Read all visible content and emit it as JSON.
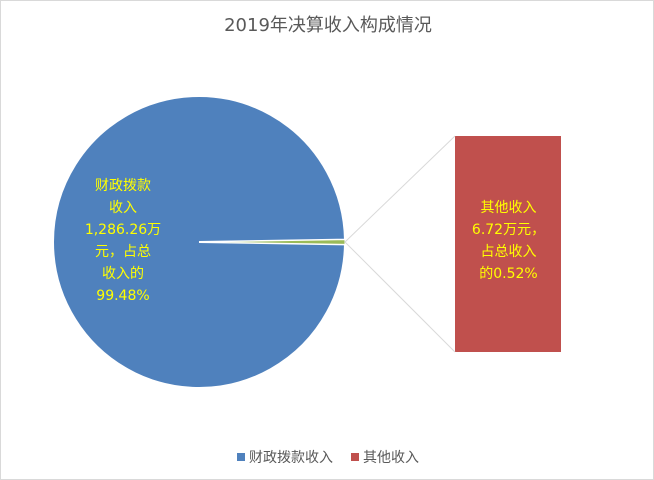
{
  "chart_data": {
    "type": "pie",
    "title": "2019年决算收入构成情况",
    "slices": [
      {
        "name": "财政拨款收入",
        "value": 1286.26,
        "percent": 99.48,
        "label": "财政拨款\n收入\n1,286.26万\n元，占总\n收入的\n99.48%",
        "color": "#4f81bd"
      },
      {
        "name": "其他收入",
        "value": 6.72,
        "percent": 0.52,
        "label": "其他收入\n6.72万元，\n占总收入\n的0.52%",
        "color": "#c0504d"
      }
    ],
    "legend": [
      "财政拨款收入",
      "其他收入"
    ],
    "legend_position": "bottom",
    "label_color": "#ffff00",
    "secondary_bar_note_color": "#9bbb59"
  }
}
